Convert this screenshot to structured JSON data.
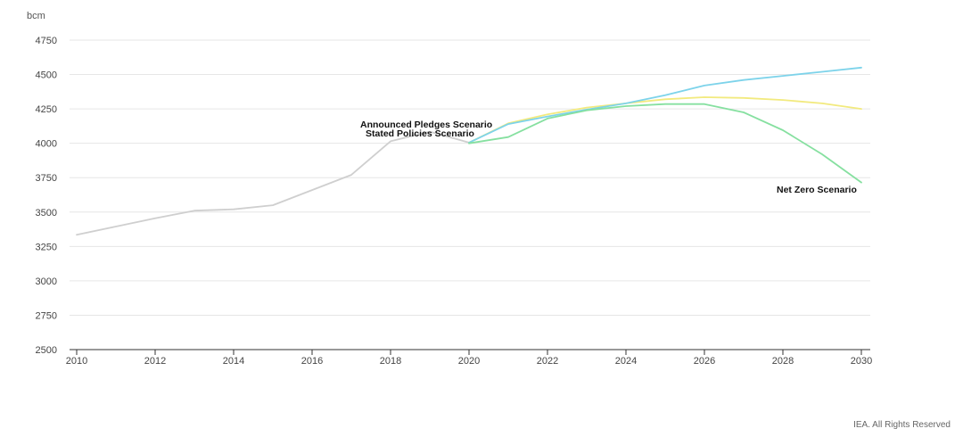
{
  "chart_data": {
    "type": "line",
    "yunit": "bcm",
    "ylim": [
      2500,
      4750
    ],
    "yticks": [
      2500,
      2750,
      3000,
      3250,
      3500,
      3750,
      4000,
      4250,
      4500,
      4750
    ],
    "xlim": [
      2010,
      2030
    ],
    "xticks": [
      2010,
      2012,
      2014,
      2016,
      2018,
      2020,
      2022,
      2024,
      2026,
      2028,
      2030
    ],
    "grid": true,
    "legend": "inline labels",
    "series": [
      {
        "key": "historical",
        "color": "#cfcfcf",
        "x": [
          2010,
          2011,
          2012,
          2013,
          2014,
          2015,
          2016,
          2017,
          2018,
          2019,
          2020
        ],
        "y": [
          3335,
          3395,
          3455,
          3510,
          3520,
          3550,
          3660,
          3770,
          4015,
          4085,
          4005
        ]
      },
      {
        "key": "stated",
        "name": "Stated Policies Scenario",
        "color": "#f2ea7e",
        "x": [
          2020,
          2021,
          2022,
          2023,
          2024,
          2025,
          2026,
          2027,
          2028,
          2029,
          2030
        ],
        "y": [
          4005,
          4145,
          4210,
          4260,
          4290,
          4320,
          4335,
          4330,
          4315,
          4290,
          4250
        ]
      },
      {
        "key": "announced",
        "name": "Announced Pledges Scenario",
        "color": "#7dd3ea",
        "x": [
          2020,
          2021,
          2022,
          2023,
          2024,
          2025,
          2026,
          2027,
          2028,
          2029,
          2030
        ],
        "y": [
          4005,
          4140,
          4195,
          4245,
          4290,
          4350,
          4420,
          4460,
          4490,
          4520,
          4550
        ]
      },
      {
        "key": "netzero",
        "name": "Net Zero Scenario",
        "color": "#86e0a0",
        "x": [
          2020,
          2021,
          2022,
          2023,
          2024,
          2025,
          2026,
          2027,
          2028,
          2029,
          2030
        ],
        "y": [
          4000,
          4045,
          4180,
          4240,
          4270,
          4285,
          4285,
          4225,
          4095,
          3920,
          3715
        ]
      }
    ],
    "annotations": {
      "announced": "Announced Pledges Scenario",
      "stated": "Stated Policies Scenario",
      "netzero": "Net Zero Scenario"
    }
  },
  "credit": "IEA. All Rights Reserved"
}
